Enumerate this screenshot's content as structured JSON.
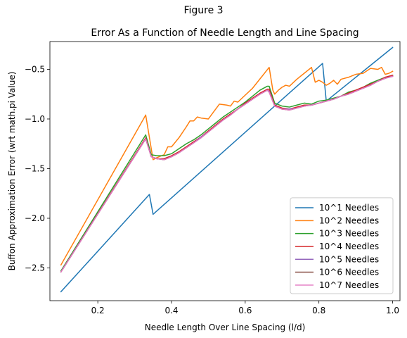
{
  "figure_title": "Figure 3",
  "chart_data": {
    "type": "line",
    "title": "Error As a Function of Needle Length and Line Spacing",
    "xlabel": "Needle Length Over Line Spacing (l/d)",
    "ylabel": "Buffon Approximation Error (wrt math.pi Value)",
    "xlim": [
      0.07,
      1.02
    ],
    "ylim": [
      -2.83,
      -0.22
    ],
    "xticks": [
      0.2,
      0.4,
      0.6,
      0.8,
      1.0
    ],
    "xtick_labels": [
      "0.2",
      "0.4",
      "0.6",
      "0.8",
      "1.0"
    ],
    "yticks": [
      -2.5,
      -2.0,
      -1.5,
      -1.0,
      -0.5
    ],
    "ytick_labels": [
      "−2.5",
      "−2.0",
      "−1.5",
      "−1.0",
      "−0.5"
    ],
    "grid": false,
    "legend_position": "lower right",
    "series": [
      {
        "name": "10^1 Needles",
        "color": "#1f77b4",
        "x": [
          0.1,
          0.34,
          0.35,
          0.81,
          0.82,
          1.0
        ],
        "y": [
          -2.74,
          -1.76,
          -1.96,
          -0.44,
          -0.82,
          -0.28
        ]
      },
      {
        "name": "10^2 Needles",
        "color": "#ff7f0e",
        "x": [
          0.1,
          0.33,
          0.35,
          0.36,
          0.38,
          0.39,
          0.4,
          0.42,
          0.44,
          0.45,
          0.46,
          0.47,
          0.48,
          0.5,
          0.53,
          0.55,
          0.56,
          0.57,
          0.58,
          0.6,
          0.62,
          0.665,
          0.675,
          0.68,
          0.69,
          0.7,
          0.71,
          0.72,
          0.74,
          0.76,
          0.78,
          0.79,
          0.8,
          0.81,
          0.82,
          0.83,
          0.84,
          0.85,
          0.86,
          0.88,
          0.9,
          0.92,
          0.94,
          0.96,
          0.97,
          0.98,
          0.99,
          1.0
        ],
        "y": [
          -2.47,
          -0.96,
          -1.41,
          -1.39,
          -1.36,
          -1.28,
          -1.28,
          -1.19,
          -1.08,
          -1.02,
          -1.02,
          -0.98,
          -0.99,
          -1.0,
          -0.85,
          -0.86,
          -0.87,
          -0.82,
          -0.83,
          -0.76,
          -0.69,
          -0.48,
          -0.71,
          -0.75,
          -0.71,
          -0.68,
          -0.66,
          -0.67,
          -0.6,
          -0.54,
          -0.48,
          -0.63,
          -0.61,
          -0.63,
          -0.66,
          -0.64,
          -0.61,
          -0.65,
          -0.6,
          -0.58,
          -0.55,
          -0.54,
          -0.49,
          -0.5,
          -0.48,
          -0.55,
          -0.54,
          -0.52
        ]
      },
      {
        "name": "10^3 Needles",
        "color": "#2ca02c",
        "x": [
          0.1,
          0.33,
          0.345,
          0.36,
          0.38,
          0.4,
          0.42,
          0.44,
          0.46,
          0.48,
          0.5,
          0.52,
          0.54,
          0.56,
          0.58,
          0.6,
          0.62,
          0.64,
          0.66,
          0.665,
          0.68,
          0.7,
          0.72,
          0.74,
          0.76,
          0.78,
          0.8,
          0.82,
          0.84,
          0.86,
          0.88,
          0.9,
          0.92,
          0.94,
          0.96,
          0.98,
          1.0
        ],
        "y": [
          -2.53,
          -1.16,
          -1.36,
          -1.37,
          -1.37,
          -1.35,
          -1.3,
          -1.25,
          -1.21,
          -1.16,
          -1.1,
          -1.04,
          -0.98,
          -0.93,
          -0.88,
          -0.83,
          -0.77,
          -0.71,
          -0.67,
          -0.67,
          -0.84,
          -0.87,
          -0.88,
          -0.86,
          -0.84,
          -0.85,
          -0.82,
          -0.81,
          -0.79,
          -0.77,
          -0.73,
          -0.71,
          -0.68,
          -0.64,
          -0.61,
          -0.58,
          -0.56
        ]
      },
      {
        "name": "10^4 Needles",
        "color": "#d62728",
        "x": [
          0.1,
          0.33,
          0.345,
          0.36,
          0.38,
          0.4,
          0.42,
          0.44,
          0.46,
          0.48,
          0.5,
          0.52,
          0.54,
          0.56,
          0.58,
          0.6,
          0.62,
          0.64,
          0.66,
          0.665,
          0.68,
          0.7,
          0.72,
          0.74,
          0.76,
          0.78,
          0.8,
          0.82,
          0.84,
          0.86,
          0.88,
          0.9,
          0.92,
          0.94,
          0.96,
          0.98,
          1.0
        ],
        "y": [
          -2.54,
          -1.19,
          -1.38,
          -1.4,
          -1.4,
          -1.37,
          -1.33,
          -1.28,
          -1.23,
          -1.18,
          -1.12,
          -1.06,
          -1.0,
          -0.95,
          -0.9,
          -0.84,
          -0.79,
          -0.74,
          -0.7,
          -0.7,
          -0.86,
          -0.89,
          -0.9,
          -0.88,
          -0.86,
          -0.86,
          -0.84,
          -0.82,
          -0.8,
          -0.77,
          -0.74,
          -0.71,
          -0.68,
          -0.65,
          -0.62,
          -0.58,
          -0.56
        ]
      },
      {
        "name": "10^5 Needles",
        "color": "#9467bd",
        "x": [
          0.1,
          0.33,
          0.345,
          0.36,
          0.38,
          0.4,
          0.42,
          0.44,
          0.46,
          0.48,
          0.5,
          0.52,
          0.54,
          0.56,
          0.58,
          0.6,
          0.62,
          0.64,
          0.66,
          0.665,
          0.68,
          0.7,
          0.72,
          0.74,
          0.76,
          0.78,
          0.8,
          0.82,
          0.84,
          0.86,
          0.88,
          0.9,
          0.92,
          0.94,
          0.96,
          0.98,
          1.0
        ],
        "y": [
          -2.54,
          -1.2,
          -1.38,
          -1.4,
          -1.41,
          -1.38,
          -1.34,
          -1.29,
          -1.24,
          -1.18,
          -1.13,
          -1.07,
          -1.01,
          -0.96,
          -0.9,
          -0.85,
          -0.8,
          -0.75,
          -0.71,
          -0.72,
          -0.87,
          -0.9,
          -0.9,
          -0.89,
          -0.87,
          -0.86,
          -0.84,
          -0.82,
          -0.8,
          -0.77,
          -0.75,
          -0.72,
          -0.69,
          -0.66,
          -0.62,
          -0.59,
          -0.57
        ]
      },
      {
        "name": "10^6 Needles",
        "color": "#8c564b",
        "x": [
          0.1,
          0.33,
          0.345,
          0.36,
          0.38,
          0.4,
          0.42,
          0.44,
          0.46,
          0.48,
          0.5,
          0.52,
          0.54,
          0.56,
          0.58,
          0.6,
          0.62,
          0.64,
          0.66,
          0.665,
          0.68,
          0.7,
          0.72,
          0.74,
          0.76,
          0.78,
          0.8,
          0.82,
          0.84,
          0.86,
          0.88,
          0.9,
          0.92,
          0.94,
          0.96,
          0.98,
          1.0
        ],
        "y": [
          -2.54,
          -1.2,
          -1.38,
          -1.4,
          -1.41,
          -1.38,
          -1.34,
          -1.29,
          -1.24,
          -1.19,
          -1.13,
          -1.07,
          -1.01,
          -0.96,
          -0.9,
          -0.85,
          -0.8,
          -0.75,
          -0.71,
          -0.73,
          -0.87,
          -0.9,
          -0.91,
          -0.89,
          -0.87,
          -0.86,
          -0.84,
          -0.82,
          -0.8,
          -0.77,
          -0.75,
          -0.72,
          -0.69,
          -0.66,
          -0.62,
          -0.59,
          -0.57
        ]
      },
      {
        "name": "10^7 Needles",
        "color": "#e377c2",
        "x": [
          0.1,
          0.33,
          0.345,
          0.36,
          0.38,
          0.4,
          0.42,
          0.44,
          0.46,
          0.48,
          0.5,
          0.52,
          0.54,
          0.56,
          0.58,
          0.6,
          0.62,
          0.64,
          0.66,
          0.665,
          0.68,
          0.7,
          0.72,
          0.74,
          0.76,
          0.78,
          0.8,
          0.82,
          0.84,
          0.86,
          0.88,
          0.9,
          0.92,
          0.94,
          0.96,
          0.98,
          1.0
        ],
        "y": [
          -2.54,
          -1.2,
          -1.38,
          -1.4,
          -1.41,
          -1.38,
          -1.34,
          -1.29,
          -1.24,
          -1.19,
          -1.13,
          -1.07,
          -1.01,
          -0.96,
          -0.9,
          -0.85,
          -0.8,
          -0.75,
          -0.71,
          -0.73,
          -0.87,
          -0.9,
          -0.91,
          -0.89,
          -0.87,
          -0.86,
          -0.84,
          -0.82,
          -0.8,
          -0.77,
          -0.75,
          -0.72,
          -0.69,
          -0.66,
          -0.62,
          -0.59,
          -0.57
        ]
      }
    ]
  }
}
